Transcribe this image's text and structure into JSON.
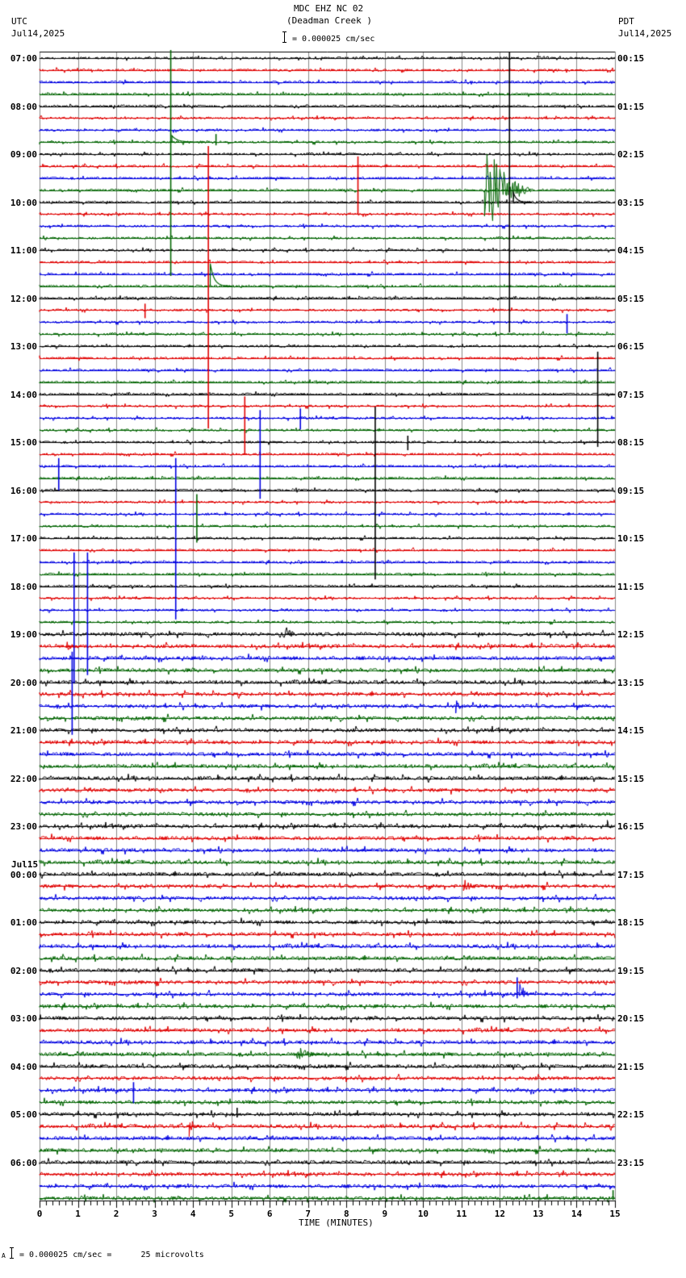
{
  "header": {
    "title": "MDC EHZ NC 02",
    "subtitle": "(Deadman Creek )",
    "scale_text": "= 0.000025 cm/sec",
    "left_tz": "UTC",
    "left_date": "Jul14,2025",
    "right_tz": "PDT",
    "right_date": "Jul14,2025"
  },
  "footer": {
    "scale_text": "= 0.000025 cm/sec =      25 microvolts",
    "prefix": "A"
  },
  "chart_data": {
    "type": "helicorder",
    "title": "MDC EHZ NC 02 (Deadman Creek )",
    "xlabel": "TIME (MINUTES)",
    "ylabel_left": "UTC",
    "ylabel_right": "PDT",
    "xlim": [
      0,
      15
    ],
    "x_ticks": [
      0,
      1,
      2,
      3,
      4,
      5,
      6,
      7,
      8,
      9,
      10,
      11,
      12,
      13,
      14,
      15
    ],
    "traces_per_hour": 4,
    "minutes_per_trace": 15,
    "trace_count": 96,
    "trace_colors": [
      "#000000",
      "#e00000",
      "#0000e0",
      "#006400"
    ],
    "grid": true,
    "left_labels": [
      {
        "trace": 0,
        "text": "07:00"
      },
      {
        "trace": 4,
        "text": "08:00"
      },
      {
        "trace": 8,
        "text": "09:00"
      },
      {
        "trace": 12,
        "text": "10:00"
      },
      {
        "trace": 16,
        "text": "11:00"
      },
      {
        "trace": 20,
        "text": "12:00"
      },
      {
        "trace": 24,
        "text": "13:00"
      },
      {
        "trace": 28,
        "text": "14:00"
      },
      {
        "trace": 32,
        "text": "15:00"
      },
      {
        "trace": 36,
        "text": "16:00"
      },
      {
        "trace": 40,
        "text": "17:00"
      },
      {
        "trace": 44,
        "text": "18:00"
      },
      {
        "trace": 48,
        "text": "19:00"
      },
      {
        "trace": 52,
        "text": "20:00"
      },
      {
        "trace": 56,
        "text": "21:00"
      },
      {
        "trace": 60,
        "text": "22:00"
      },
      {
        "trace": 64,
        "text": "23:00"
      },
      {
        "trace": 68,
        "text": "00:00",
        "date": "Jul15"
      },
      {
        "trace": 72,
        "text": "01:00"
      },
      {
        "trace": 76,
        "text": "02:00"
      },
      {
        "trace": 80,
        "text": "03:00"
      },
      {
        "trace": 84,
        "text": "04:00"
      },
      {
        "trace": 88,
        "text": "05:00"
      },
      {
        "trace": 92,
        "text": "06:00"
      }
    ],
    "right_labels": [
      "00:15",
      "01:15",
      "02:15",
      "03:15",
      "04:15",
      "05:15",
      "06:15",
      "07:15",
      "08:15",
      "09:15",
      "10:15",
      "11:15",
      "12:15",
      "13:15",
      "14:15",
      "15:15",
      "16:15",
      "17:15",
      "18:15",
      "19:15",
      "20:15",
      "21:15",
      "22:15",
      "23:15"
    ],
    "noise_by_trace_range": [
      {
        "from": 0,
        "to": 47,
        "amp": 2.0
      },
      {
        "from": 48,
        "to": 95,
        "amp": 3.2
      }
    ],
    "events": [
      {
        "trace": 0,
        "minute": 3.42,
        "type": "spike",
        "up": 10,
        "down": 270,
        "color": "#006400"
      },
      {
        "trace": 7,
        "minute": 3.45,
        "type": "step",
        "amp": 8,
        "decay": 20
      },
      {
        "trace": 7,
        "minute": 4.6,
        "type": "spike",
        "up": 10,
        "down": 4
      },
      {
        "trace": 8,
        "minute": 4.4,
        "type": "spike",
        "up": 10,
        "down": 340,
        "color": "#e00000"
      },
      {
        "trace": 9,
        "minute": 8.3,
        "type": "spike",
        "up": 12,
        "down": 60,
        "color": "#e00000"
      },
      {
        "trace": 0,
        "minute": 12.25,
        "type": "spike",
        "up": 8,
        "down": 340,
        "color": "#000000"
      },
      {
        "trace": 11,
        "minute": 11.6,
        "type": "quake",
        "amp": 80,
        "dur": 1.2
      },
      {
        "trace": 12,
        "minute": 12.35,
        "type": "step",
        "amp": 12,
        "decay": 12
      },
      {
        "trace": 19,
        "minute": 4.45,
        "type": "step",
        "amp": 28,
        "decay": 14
      },
      {
        "trace": 21,
        "minute": 2.75,
        "type": "spike",
        "up": 8,
        "down": 10
      },
      {
        "trace": 22,
        "minute": 13.75,
        "type": "spike",
        "up": 10,
        "down": 14
      },
      {
        "trace": 25,
        "minute": 14.55,
        "type": "spike",
        "up": 8,
        "down": 110,
        "color": "#000000"
      },
      {
        "trace": 30,
        "minute": 6.8,
        "type": "spike",
        "up": 12,
        "down": 14
      },
      {
        "trace": 30,
        "minute": 5.75,
        "type": "spike",
        "up": 10,
        "down": 100,
        "color": "#0000e0"
      },
      {
        "trace": 29,
        "minute": 5.35,
        "type": "spike",
        "up": 12,
        "down": 60,
        "color": "#e00000"
      },
      {
        "trace": 30,
        "minute": 8.75,
        "type": "spike",
        "up": 14,
        "down": 200,
        "color": "#000000"
      },
      {
        "trace": 32,
        "minute": 9.6,
        "type": "spike",
        "up": 8,
        "down": 10
      },
      {
        "trace": 34,
        "minute": 0.5,
        "type": "spike",
        "up": 10,
        "down": 30
      },
      {
        "trace": 34,
        "minute": 3.55,
        "type": "spike",
        "up": 10,
        "down": 190,
        "color": "#0000e0"
      },
      {
        "trace": 37,
        "minute": 4.1,
        "type": "spike",
        "up": 10,
        "down": 50,
        "color": "#006400"
      },
      {
        "trace": 42,
        "minute": 0.9,
        "type": "spike",
        "up": 12,
        "down": 150,
        "color": "#0000e0"
      },
      {
        "trace": 42,
        "minute": 1.25,
        "type": "spike",
        "up": 12,
        "down": 140,
        "color": "#0000e0"
      },
      {
        "trace": 49,
        "minute": 0.7,
        "type": "quake",
        "amp": 10,
        "dur": 0.3
      },
      {
        "trace": 48,
        "minute": 6.4,
        "type": "quake",
        "amp": 14,
        "dur": 0.35
      },
      {
        "trace": 50,
        "minute": 0.85,
        "type": "spike",
        "up": 8,
        "down": 95,
        "color": "#0000e0"
      },
      {
        "trace": 54,
        "minute": 10.85,
        "type": "quake",
        "amp": 9,
        "dur": 0.4
      },
      {
        "trace": 64,
        "minute": 14.8,
        "type": "quake",
        "amp": 8,
        "dur": 0.2
      },
      {
        "trace": 69,
        "minute": 11.05,
        "type": "quake",
        "amp": 12,
        "dur": 0.5
      },
      {
        "trace": 69,
        "minute": 10.15,
        "type": "quake",
        "amp": 7,
        "dur": 0.2
      },
      {
        "trace": 78,
        "minute": 12.5,
        "type": "quake",
        "amp": 16,
        "dur": 0.5
      },
      {
        "trace": 77,
        "minute": 12.45,
        "type": "spike",
        "up": 6,
        "down": 20,
        "color": "#0000e0"
      },
      {
        "trace": 83,
        "minute": 6.7,
        "type": "quake",
        "amp": 12,
        "dur": 0.8
      },
      {
        "trace": 86,
        "minute": 2.45,
        "type": "spike",
        "up": 10,
        "down": 16
      },
      {
        "trace": 88,
        "minute": 5.15,
        "type": "spike",
        "up": 8,
        "down": 4
      },
      {
        "trace": 89,
        "minute": 3.9,
        "type": "quake",
        "amp": 14,
        "dur": 0.35
      },
      {
        "trace": 95,
        "minute": 14.95,
        "type": "spike",
        "up": 10,
        "down": 2
      }
    ]
  }
}
